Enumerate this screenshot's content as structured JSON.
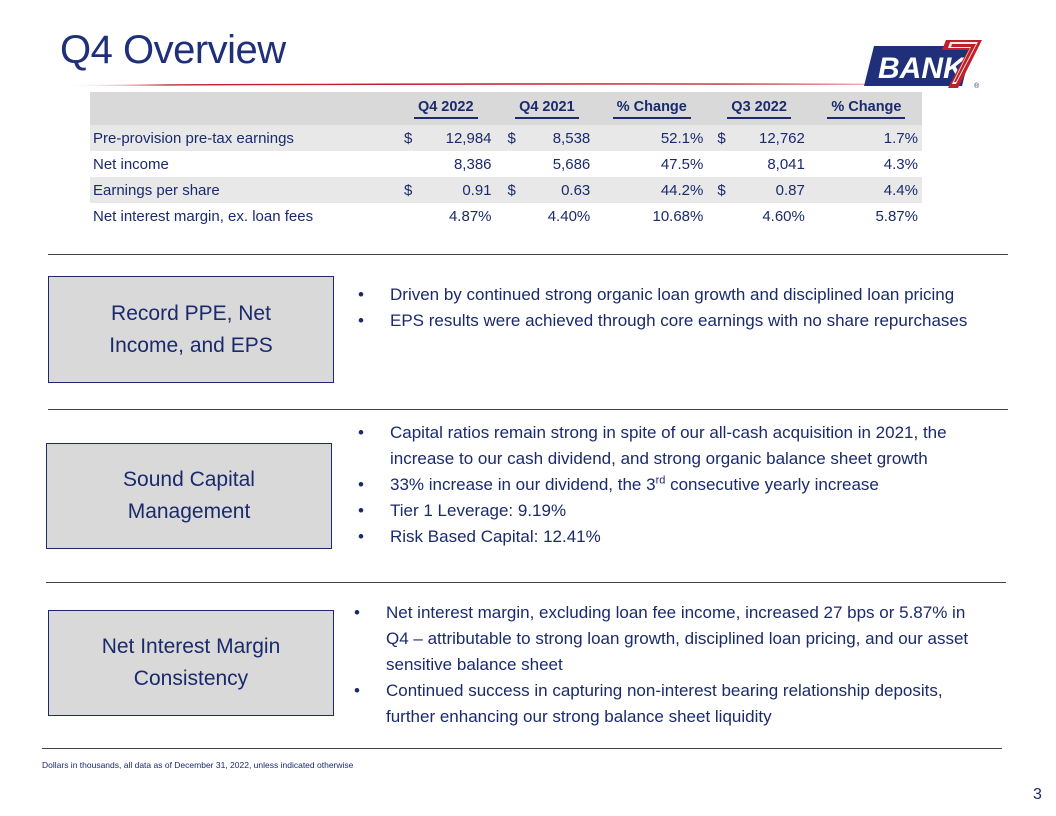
{
  "title": "Q4 Overview",
  "logo": {
    "text": "BANK",
    "digit": "7",
    "reg": "®",
    "brand_blue": "#1f2f7a",
    "brand_red": "#c0202a"
  },
  "table": {
    "headers": [
      "Q4 2022",
      "Q4 2021",
      "% Change",
      "Q3 2022",
      "% Change"
    ],
    "rows": [
      {
        "label": "Pre-provision pre-tax earnings",
        "c1": "$",
        "v1": "12,984",
        "c2": "$",
        "v2": "8,538",
        "p1": "52.1%",
        "c3": "$",
        "v3": "12,762",
        "p2": "1.7%"
      },
      {
        "label": "Net income",
        "c1": "",
        "v1": "8,386",
        "c2": "",
        "v2": "5,686",
        "p1": "47.5%",
        "c3": "",
        "v3": "8,041",
        "p2": "4.3%"
      },
      {
        "label": "Earnings per share",
        "c1": "$",
        "v1": "0.91",
        "c2": "$",
        "v2": "0.63",
        "p1": "44.2%",
        "c3": "$",
        "v3": "0.87",
        "p2": "4.4%"
      },
      {
        "label": "Net interest margin, ex. loan fees",
        "c1": "",
        "v1": "4.87%",
        "c2": "",
        "v2": "4.40%",
        "p1": "10.68%",
        "c3": "",
        "v3": "4.60%",
        "p2": "5.87%"
      }
    ]
  },
  "sections": [
    {
      "heading": "Record PPE, Net\nIncome, and EPS",
      "bullets": [
        "Driven by continued strong organic loan growth and disciplined loan pricing",
        "EPS results were achieved through core earnings with no share repurchases"
      ]
    },
    {
      "heading": "Sound Capital\nManagement",
      "bullets": [
        "Capital ratios remain strong in spite of our all-cash acquisition in 2021, the increase to our cash dividend, and strong organic balance sheet growth",
        {
          "pre": "33% increase in our dividend, the 3",
          "sup": "rd",
          "post": " consecutive yearly increase"
        },
        "Tier 1 Leverage:  9.19%",
        "Risk Based Capital:  12.41%"
      ]
    },
    {
      "heading": "Net Interest Margin\nConsistency",
      "bullets": [
        "Net interest margin, excluding loan fee income, increased 27 bps or 5.87% in Q4 – attributable to strong loan growth, disciplined loan pricing, and our asset sensitive balance sheet",
        "Continued success in capturing non-interest bearing relationship deposits, further enhancing our strong balance sheet liquidity"
      ]
    }
  ],
  "footnote": "Dollars in thousands, all data as of December 31, 2022, unless indicated otherwise",
  "page_number": "3"
}
